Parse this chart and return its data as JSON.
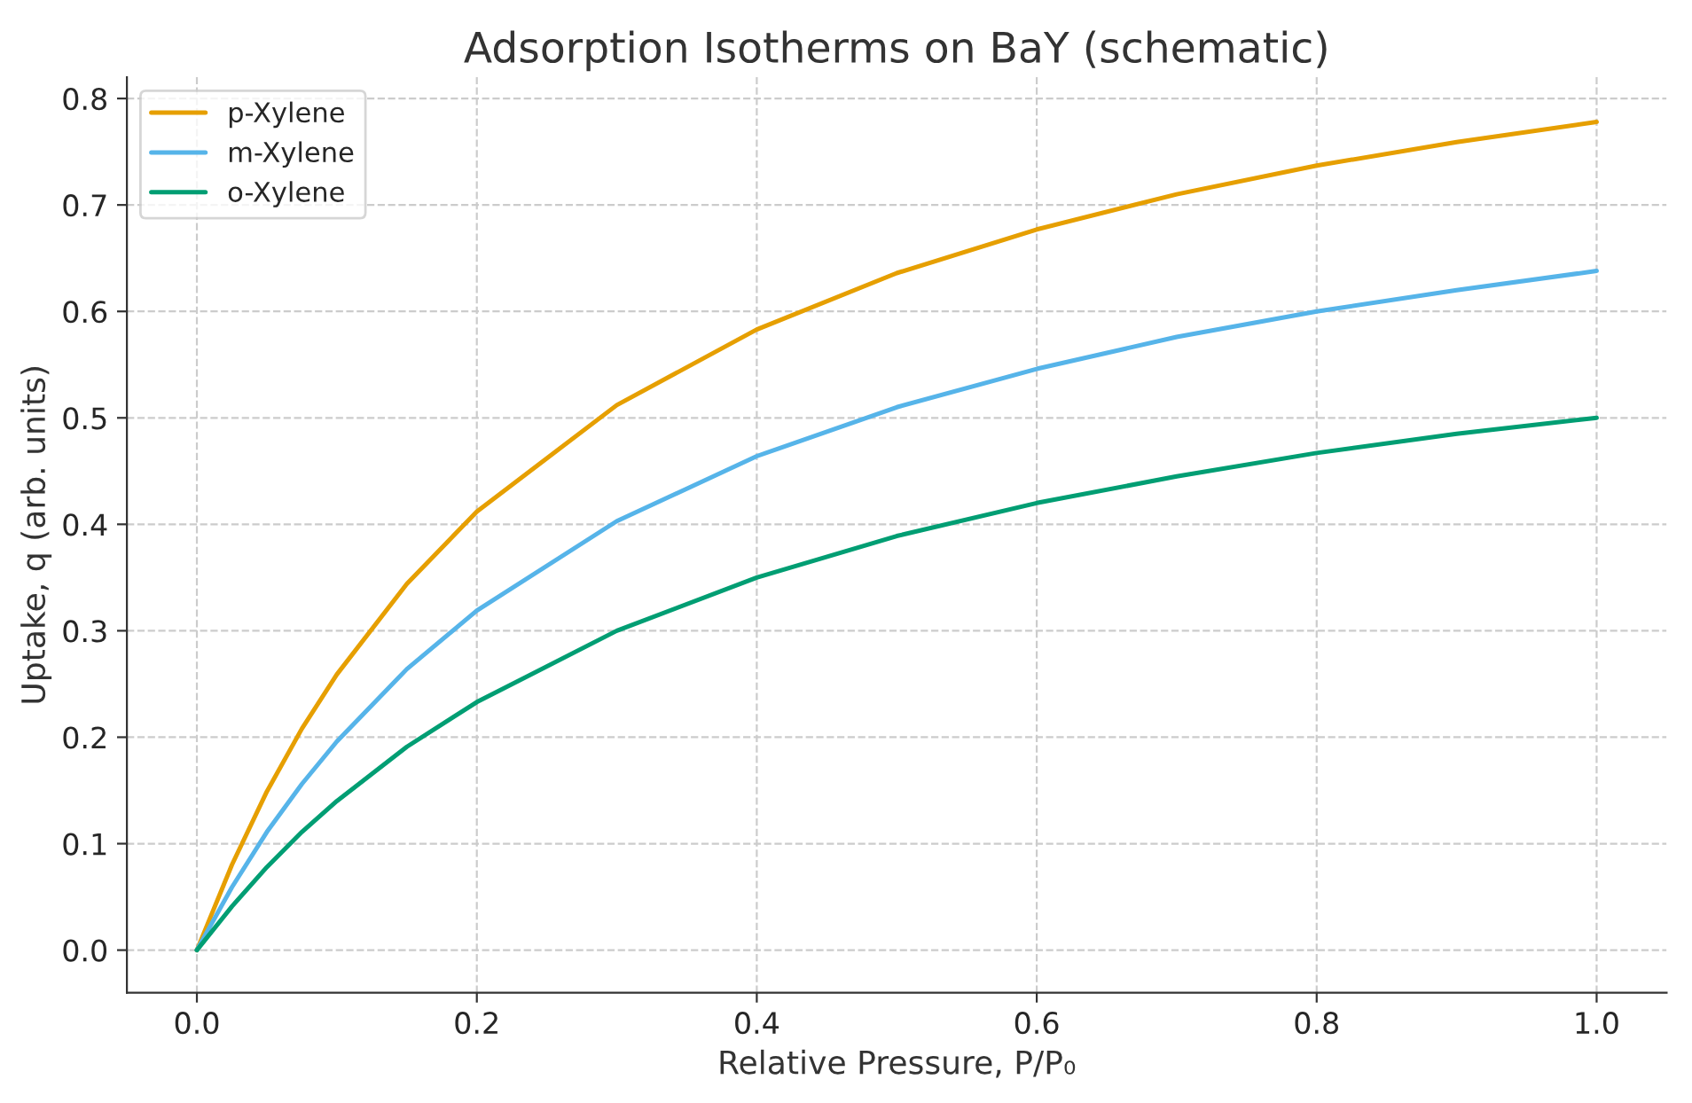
{
  "chart_data": {
    "type": "line",
    "title": "Adsorption Isotherms on BaY (schematic)",
    "xlabel": "Relative Pressure, P/P₀",
    "ylabel": "Uptake, q (arb. units)",
    "x": [
      0,
      0.025,
      0.05,
      0.075,
      0.1,
      0.15,
      0.2,
      0.3,
      0.4,
      0.5,
      0.6,
      0.7,
      0.8,
      0.9,
      1.0
    ],
    "series": [
      {
        "name": "p-Xylene",
        "color": "#e69f00",
        "values": [
          0,
          0.08,
          0.149,
          0.208,
          0.259,
          0.344,
          0.412,
          0.512,
          0.583,
          0.636,
          0.677,
          0.71,
          0.737,
          0.759,
          0.778
        ]
      },
      {
        "name": "m-Xylene",
        "color": "#56b4e9",
        "values": [
          0,
          0.059,
          0.111,
          0.156,
          0.196,
          0.264,
          0.319,
          0.403,
          0.464,
          0.51,
          0.546,
          0.576,
          0.6,
          0.62,
          0.638
        ]
      },
      {
        "name": "o-Xylene",
        "color": "#009e73",
        "values": [
          0,
          0.041,
          0.078,
          0.111,
          0.14,
          0.191,
          0.233,
          0.3,
          0.35,
          0.389,
          0.42,
          0.445,
          0.467,
          0.485,
          0.5
        ]
      }
    ],
    "xlim": [
      -0.05,
      1.05
    ],
    "ylim": [
      -0.04,
      0.82
    ],
    "xticks": [
      {
        "value": 0,
        "label": "0.0"
      },
      0.2,
      0.4,
      0.6,
      0.8,
      {
        "value": 1,
        "label": "1.0"
      }
    ],
    "yticks": [
      {
        "value": 0,
        "label": "0.0"
      },
      0.1,
      0.2,
      0.3,
      0.4,
      0.5,
      0.6,
      0.7,
      0.8
    ],
    "grid": true,
    "legend": "top left",
    "line_style": "solid",
    "marker": "none"
  }
}
